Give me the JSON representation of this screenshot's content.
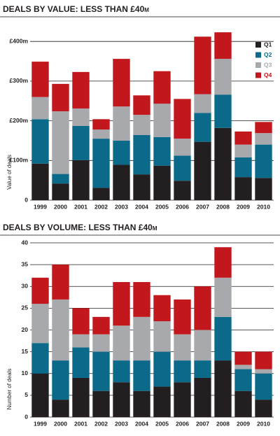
{
  "chart_data": [
    {
      "type": "bar",
      "stacked": true,
      "title": "DEALS BY VALUE: LESS THAN £40m",
      "y_label": "Value of deals",
      "categories": [
        "1999",
        "2000",
        "2001",
        "2002",
        "2003",
        "2004",
        "2005",
        "2006",
        "2007",
        "2008",
        "2009",
        "2010"
      ],
      "series": [
        {
          "name": "Q1",
          "color": "#231f20",
          "values": [
            92,
            42,
            101,
            31,
            89,
            65,
            87,
            49,
            147,
            182,
            58,
            56
          ]
        },
        {
          "name": "Q2",
          "color": "#0b6a8a",
          "values": [
            112,
            24,
            86,
            124,
            61,
            99,
            72,
            63,
            73,
            84,
            50,
            84
          ]
        },
        {
          "name": "Q3",
          "color": "#a7a9ac",
          "values": [
            56,
            158,
            44,
            23,
            86,
            51,
            84,
            43,
            47,
            90,
            32,
            29
          ]
        },
        {
          "name": "Q4",
          "color": "#c1171d",
          "values": [
            89,
            69,
            92,
            26,
            120,
            49,
            82,
            100,
            145,
            67,
            33,
            28
          ]
        }
      ],
      "ylim": [
        0,
        425
      ],
      "yticks": [
        0,
        {
          "value": 100,
          "label": "£100m"
        },
        {
          "value": 200,
          "label": "£200m"
        },
        {
          "value": 300,
          "label": "£300m"
        },
        {
          "value": 400,
          "label": "£400m"
        }
      ],
      "grid": true,
      "legend": "upper right"
    },
    {
      "type": "bar",
      "stacked": true,
      "title": "DEALS BY VOLUME: LESS THAN £40m",
      "y_label": "Number of deals",
      "categories": [
        "1999",
        "2000",
        "2001",
        "2002",
        "2003",
        "2004",
        "2005",
        "2006",
        "2007",
        "2008",
        "2009",
        "2010"
      ],
      "series": [
        {
          "color": "#231f20",
          "values": [
            10,
            4,
            9,
            6,
            8,
            6,
            7,
            8,
            9,
            13,
            6,
            4
          ]
        },
        {
          "color": "#0b6a8a",
          "values": [
            7,
            9,
            7,
            9,
            5,
            7,
            8,
            5,
            4,
            10,
            5,
            6
          ]
        },
        {
          "color": "#a7a9ac",
          "values": [
            9,
            14,
            3,
            4,
            8,
            10,
            7,
            6,
            7,
            9,
            1,
            1
          ]
        },
        {
          "color": "#c1171d",
          "values": [
            6,
            8,
            6,
            4,
            10,
            8,
            6,
            8,
            10,
            7,
            3,
            4
          ]
        }
      ],
      "ylim": [
        0,
        40
      ],
      "yticks": [
        0,
        5,
        10,
        15,
        20,
        25,
        30,
        35,
        40
      ],
      "grid": true
    }
  ]
}
